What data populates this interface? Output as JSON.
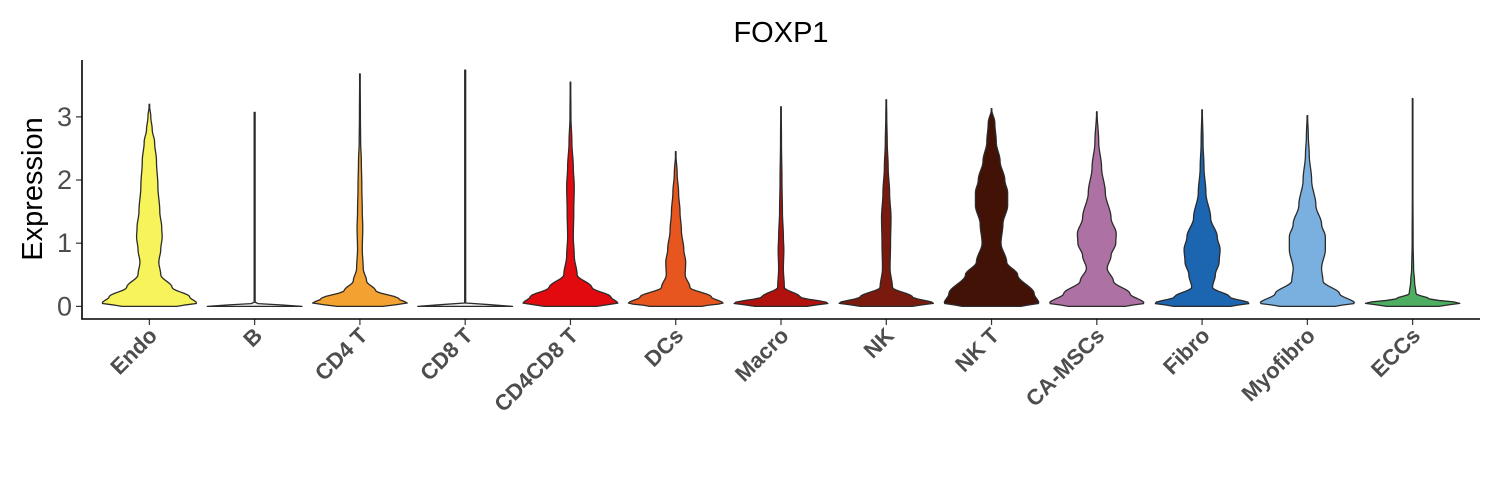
{
  "chart_data": {
    "type": "violin",
    "title": "FOXP1",
    "ylabel": "Expression",
    "xlabel": "",
    "ylim": [
      -0.2,
      3.9
    ],
    "yticks": [
      0,
      1,
      2,
      3
    ],
    "grid": false,
    "legend": "none",
    "categories": [
      "Endo",
      "B",
      "CD4 T",
      "CD8 T",
      "CD4CD8 T",
      "DCs",
      "Macro",
      "NK",
      "NK T",
      "CA-MSCs",
      "Fibro",
      "Myofibro",
      "ECCs"
    ],
    "colors": [
      "#F7F35A",
      "#F2F2F2",
      "#F3A232",
      "#F2F2F2",
      "#E20A0E",
      "#E8561F",
      "#B1120E",
      "#7A1A0E",
      "#421207",
      "#AD72A3",
      "#1C65B1",
      "#7AB0E0",
      "#4DAE61"
    ],
    "max_values": [
      3.2,
      3.07,
      3.68,
      3.74,
      3.55,
      2.45,
      3.16,
      3.27,
      3.13,
      3.08,
      3.11,
      3.02,
      3.29
    ],
    "density_profiles": [
      [
        [
          0,
          0.58
        ],
        [
          0.05,
          1
        ],
        [
          0.15,
          0.85
        ],
        [
          0.3,
          0.48
        ],
        [
          0.5,
          0.24
        ],
        [
          0.7,
          0.2
        ],
        [
          0.9,
          0.24
        ],
        [
          1.1,
          0.27
        ],
        [
          1.25,
          0.26
        ],
        [
          1.5,
          0.22
        ],
        [
          1.9,
          0.18
        ],
        [
          2.3,
          0.15
        ],
        [
          2.6,
          0.11
        ],
        [
          2.8,
          0.06
        ],
        [
          3.0,
          0.03
        ],
        [
          3.2,
          0
        ]
      ],
      [
        [
          0,
          1
        ],
        [
          0.02,
          0.6
        ],
        [
          0.05,
          0.01
        ],
        [
          3.07,
          0.01
        ]
      ],
      [
        [
          0,
          0.48
        ],
        [
          0.05,
          1
        ],
        [
          0.12,
          0.82
        ],
        [
          0.25,
          0.33
        ],
        [
          0.4,
          0.14
        ],
        [
          0.6,
          0.07
        ],
        [
          0.9,
          0.05
        ],
        [
          1.25,
          0.06
        ],
        [
          1.5,
          0.05
        ],
        [
          1.9,
          0.04
        ],
        [
          2.3,
          0.03
        ],
        [
          2.6,
          0.015
        ],
        [
          3.0,
          0.01
        ],
        [
          3.68,
          0.005
        ]
      ],
      [
        [
          0,
          1
        ],
        [
          0.02,
          0.6
        ],
        [
          0.05,
          0.01
        ],
        [
          3.74,
          0.01
        ]
      ],
      [
        [
          0,
          0.55
        ],
        [
          0.05,
          1
        ],
        [
          0.15,
          0.85
        ],
        [
          0.3,
          0.45
        ],
        [
          0.5,
          0.14
        ],
        [
          0.8,
          0.08
        ],
        [
          1.1,
          0.06
        ],
        [
          1.5,
          0.07
        ],
        [
          1.9,
          0.08
        ],
        [
          2.2,
          0.06
        ],
        [
          2.6,
          0.03
        ],
        [
          3.0,
          0.01
        ],
        [
          3.55,
          0.005
        ]
      ],
      [
        [
          0,
          0.55
        ],
        [
          0.05,
          1
        ],
        [
          0.15,
          0.75
        ],
        [
          0.3,
          0.3
        ],
        [
          0.5,
          0.2
        ],
        [
          0.7,
          0.21
        ],
        [
          0.9,
          0.17
        ],
        [
          1.2,
          0.12
        ],
        [
          1.5,
          0.09
        ],
        [
          1.8,
          0.06
        ],
        [
          2.1,
          0.03
        ],
        [
          2.45,
          0
        ]
      ],
      [
        [
          0,
          0.55
        ],
        [
          0.05,
          1
        ],
        [
          0.15,
          0.4
        ],
        [
          0.3,
          0.07
        ],
        [
          0.6,
          0.05
        ],
        [
          0.9,
          0.06
        ],
        [
          1.1,
          0.05
        ],
        [
          1.5,
          0.03
        ],
        [
          2.0,
          0.02
        ],
        [
          2.6,
          0.01
        ],
        [
          3.16,
          0.005
        ]
      ],
      [
        [
          0,
          0.55
        ],
        [
          0.05,
          1
        ],
        [
          0.15,
          0.55
        ],
        [
          0.3,
          0.13
        ],
        [
          0.6,
          0.08
        ],
        [
          1.0,
          0.09
        ],
        [
          1.4,
          0.1
        ],
        [
          1.8,
          0.07
        ],
        [
          2.2,
          0.04
        ],
        [
          2.6,
          0.02
        ],
        [
          3.0,
          0.01
        ],
        [
          3.27,
          0.005
        ]
      ],
      [
        [
          0,
          0.62
        ],
        [
          0.05,
          1
        ],
        [
          0.2,
          0.9
        ],
        [
          0.5,
          0.55
        ],
        [
          0.7,
          0.32
        ],
        [
          1.0,
          0.2
        ],
        [
          1.3,
          0.24
        ],
        [
          1.6,
          0.34
        ],
        [
          1.8,
          0.34
        ],
        [
          2.0,
          0.28
        ],
        [
          2.3,
          0.18
        ],
        [
          2.6,
          0.1
        ],
        [
          2.9,
          0.07
        ],
        [
          3.13,
          0
        ]
      ],
      [
        [
          0,
          0.6
        ],
        [
          0.05,
          1
        ],
        [
          0.2,
          0.7
        ],
        [
          0.4,
          0.35
        ],
        [
          0.6,
          0.22
        ],
        [
          0.8,
          0.3
        ],
        [
          1.0,
          0.4
        ],
        [
          1.15,
          0.41
        ],
        [
          1.4,
          0.3
        ],
        [
          1.8,
          0.18
        ],
        [
          2.2,
          0.1
        ],
        [
          2.6,
          0.04
        ],
        [
          3.08,
          0.005
        ]
      ],
      [
        [
          0,
          0.6
        ],
        [
          0.05,
          1
        ],
        [
          0.15,
          0.58
        ],
        [
          0.3,
          0.22
        ],
        [
          0.5,
          0.28
        ],
        [
          0.7,
          0.36
        ],
        [
          0.9,
          0.38
        ],
        [
          1.1,
          0.32
        ],
        [
          1.4,
          0.18
        ],
        [
          1.8,
          0.08
        ],
        [
          2.2,
          0.04
        ],
        [
          2.6,
          0.02
        ],
        [
          3.11,
          0.005
        ]
      ],
      [
        [
          0,
          0.58
        ],
        [
          0.05,
          1
        ],
        [
          0.2,
          0.68
        ],
        [
          0.4,
          0.33
        ],
        [
          0.6,
          0.3
        ],
        [
          0.9,
          0.38
        ],
        [
          1.1,
          0.38
        ],
        [
          1.3,
          0.3
        ],
        [
          1.6,
          0.18
        ],
        [
          2.0,
          0.09
        ],
        [
          2.4,
          0.04
        ],
        [
          2.7,
          0.02
        ],
        [
          3.02,
          0.005
        ]
      ],
      [
        [
          0,
          0.55
        ],
        [
          0.05,
          1
        ],
        [
          0.12,
          0.35
        ],
        [
          0.2,
          0.07
        ],
        [
          0.4,
          0.04
        ],
        [
          0.6,
          0.02
        ],
        [
          1.0,
          0.01
        ],
        [
          2.0,
          0.005
        ],
        [
          3.29,
          0.003
        ]
      ]
    ]
  }
}
